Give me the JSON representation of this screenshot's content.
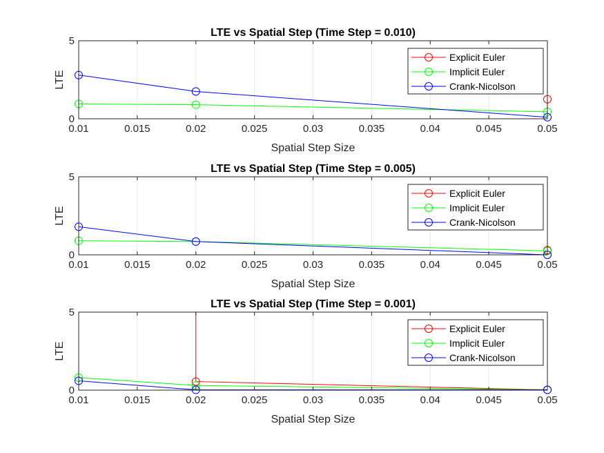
{
  "chart_data": [
    {
      "type": "line",
      "title": "LTE vs Spatial Step (Time Step = 0.010)",
      "xlabel": "Spatial Step Size",
      "ylabel": "LTE",
      "xlim": [
        0.01,
        0.05
      ],
      "ylim": [
        0,
        5
      ],
      "xticks": [
        0.01,
        0.015,
        0.02,
        0.025,
        0.03,
        0.035,
        0.04,
        0.045,
        0.05
      ],
      "xtick_labels": [
        "0.01",
        "0.015",
        "0.02",
        "0.025",
        "0.03",
        "0.035",
        "0.04",
        "0.045",
        "0.05"
      ],
      "yticks": [
        0,
        5
      ],
      "ytick_labels": [
        "0",
        "5"
      ],
      "grid": "x",
      "legend": "top-right",
      "x": [
        0.01,
        0.02,
        0.05
      ],
      "series": [
        {
          "name": "Explicit Euler",
          "color": "#ff0000",
          "values": [
            null,
            null,
            1.25
          ],
          "vertical_to_top_at": 0.05
        },
        {
          "name": "Implicit Euler",
          "color": "#00ff00",
          "values": [
            0.95,
            0.9,
            0.45
          ]
        },
        {
          "name": "Crank-Nicolson",
          "color": "#0000ff",
          "values": [
            2.8,
            1.75,
            0.1
          ]
        }
      ]
    },
    {
      "type": "line",
      "title": "LTE vs Spatial Step (Time Step = 0.005)",
      "xlabel": "Spatial Step Size",
      "ylabel": "LTE",
      "xlim": [
        0.01,
        0.05
      ],
      "ylim": [
        0,
        5
      ],
      "xticks": [
        0.01,
        0.015,
        0.02,
        0.025,
        0.03,
        0.035,
        0.04,
        0.045,
        0.05
      ],
      "xtick_labels": [
        "0.01",
        "0.015",
        "0.02",
        "0.025",
        "0.03",
        "0.035",
        "0.04",
        "0.045",
        "0.05"
      ],
      "yticks": [
        0,
        5
      ],
      "ytick_labels": [
        "0",
        "5"
      ],
      "grid": "x",
      "legend": "top-right",
      "x": [
        0.01,
        0.02,
        0.05
      ],
      "series": [
        {
          "name": "Explicit Euler",
          "color": "#ff0000",
          "values": [
            null,
            null,
            0.3
          ],
          "vertical_to_top_at": 0.05
        },
        {
          "name": "Implicit Euler",
          "color": "#00ff00",
          "values": [
            0.9,
            0.85,
            0.25
          ]
        },
        {
          "name": "Crank-Nicolson",
          "color": "#0000ff",
          "values": [
            1.8,
            0.85,
            0.0
          ]
        }
      ]
    },
    {
      "type": "line",
      "title": "LTE vs Spatial Step (Time Step = 0.001)",
      "xlabel": "Spatial Step Size",
      "ylabel": "LTE",
      "xlim": [
        0.01,
        0.05
      ],
      "ylim": [
        0,
        5
      ],
      "xticks": [
        0.01,
        0.015,
        0.02,
        0.025,
        0.03,
        0.035,
        0.04,
        0.045,
        0.05
      ],
      "xtick_labels": [
        "0.01",
        "0.015",
        "0.02",
        "0.025",
        "0.03",
        "0.035",
        "0.04",
        "0.045",
        "0.05"
      ],
      "yticks": [
        0,
        5
      ],
      "ytick_labels": [
        "0",
        "5"
      ],
      "grid": "x",
      "legend": "top-right",
      "x": [
        0.01,
        0.02,
        0.05
      ],
      "series": [
        {
          "name": "Explicit Euler",
          "color": "#ff0000",
          "values": [
            null,
            0.55,
            0.02
          ],
          "vertical_to_top_at": 0.02
        },
        {
          "name": "Implicit Euler",
          "color": "#00ff00",
          "values": [
            0.8,
            0.3,
            0.02
          ]
        },
        {
          "name": "Crank-Nicolson",
          "color": "#0000ff",
          "values": [
            0.6,
            0.02,
            0.02
          ]
        }
      ]
    }
  ]
}
